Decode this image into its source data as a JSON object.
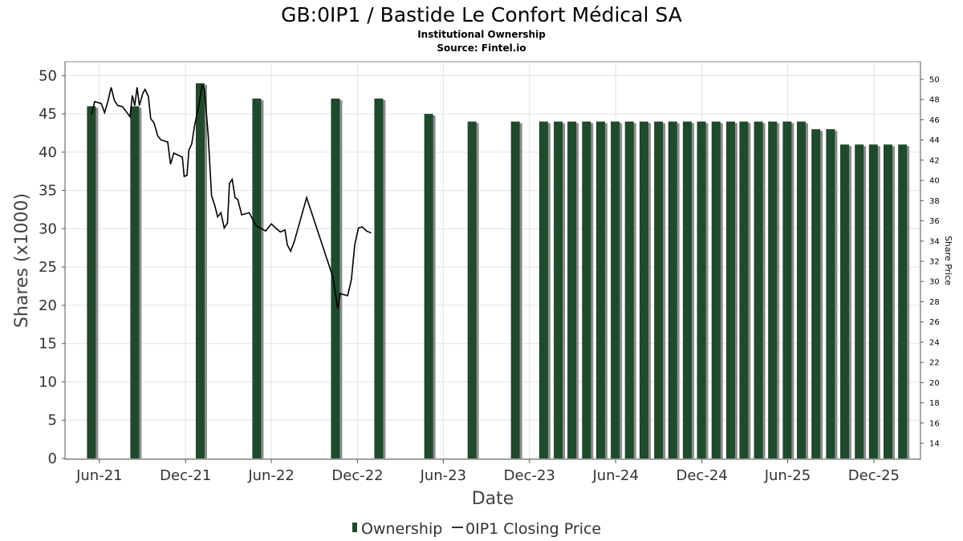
{
  "chart_data": {
    "type": "bar",
    "title": "GB:0IP1 / Bastide Le Confort Médical SA",
    "subtitle_lines": [
      "Institutional Ownership",
      "Source: Fintel.io"
    ],
    "xlabel": "Date",
    "ylabel": "Shares (x1000)",
    "y2label": "Share Price",
    "ylim": [
      0,
      51.5
    ],
    "y2lim": [
      12.5,
      51.5
    ],
    "yticks": [
      0,
      5,
      10,
      15,
      20,
      25,
      30,
      35,
      40,
      45,
      50
    ],
    "y2ticks": [
      14,
      16,
      18,
      20,
      22,
      24,
      26,
      28,
      30,
      32,
      34,
      36,
      38,
      40,
      42,
      44,
      46,
      48,
      50
    ],
    "xlim": [
      "2021-03-20",
      "2026-03-10"
    ],
    "xticks": [
      {
        "label": "Jun-21",
        "date": "2021-06-01"
      },
      {
        "label": "Dec-21",
        "date": "2021-12-01"
      },
      {
        "label": "Jun-22",
        "date": "2022-06-01"
      },
      {
        "label": "Dec-22",
        "date": "2022-12-01"
      },
      {
        "label": "Jun-23",
        "date": "2023-06-01"
      },
      {
        "label": "Dec-23",
        "date": "2023-12-01"
      },
      {
        "label": "Jun-24",
        "date": "2024-06-01"
      },
      {
        "label": "Dec-24",
        "date": "2024-12-01"
      },
      {
        "label": "Jun-25",
        "date": "2025-06-01"
      },
      {
        "label": "Dec-25",
        "date": "2025-12-01"
      }
    ],
    "grid": true,
    "legend_position": "bottom",
    "colors": {
      "bar": "#1f4a2c",
      "bar_shadow": "#8c8c8c",
      "line": "#000000"
    },
    "series": [
      {
        "name": "Ownership",
        "type": "bar",
        "points": [
          {
            "x": "2021-05-15",
            "y": 46
          },
          {
            "x": "2021-08-15",
            "y": 46
          },
          {
            "x": "2022-01-01",
            "y": 49
          },
          {
            "x": "2022-05-01",
            "y": 47
          },
          {
            "x": "2022-10-15",
            "y": 47
          },
          {
            "x": "2023-01-15",
            "y": 47
          },
          {
            "x": "2023-05-01",
            "y": 45
          },
          {
            "x": "2023-08-01",
            "y": 44
          },
          {
            "x": "2023-11-01",
            "y": 44
          },
          {
            "x": "2023-12-31",
            "y": 44
          },
          {
            "x": "2024-01-31",
            "y": 44
          },
          {
            "x": "2024-02-29",
            "y": 44
          },
          {
            "x": "2024-03-31",
            "y": 44
          },
          {
            "x": "2024-04-30",
            "y": 44
          },
          {
            "x": "2024-05-31",
            "y": 44
          },
          {
            "x": "2024-06-30",
            "y": 44
          },
          {
            "x": "2024-07-31",
            "y": 44
          },
          {
            "x": "2024-08-31",
            "y": 44
          },
          {
            "x": "2024-09-30",
            "y": 44
          },
          {
            "x": "2024-10-31",
            "y": 44
          },
          {
            "x": "2024-11-30",
            "y": 44
          },
          {
            "x": "2024-12-31",
            "y": 44
          },
          {
            "x": "2025-01-31",
            "y": 44
          },
          {
            "x": "2025-02-28",
            "y": 44
          },
          {
            "x": "2025-03-31",
            "y": 44
          },
          {
            "x": "2025-04-30",
            "y": 44
          },
          {
            "x": "2025-05-31",
            "y": 44
          },
          {
            "x": "2025-06-30",
            "y": 44
          },
          {
            "x": "2025-07-31",
            "y": 43
          },
          {
            "x": "2025-08-31",
            "y": 43
          },
          {
            "x": "2025-09-30",
            "y": 41
          },
          {
            "x": "2025-10-31",
            "y": 41
          },
          {
            "x": "2025-11-30",
            "y": 41
          },
          {
            "x": "2025-12-31",
            "y": 41
          },
          {
            "x": "2026-01-31",
            "y": 41
          }
        ]
      },
      {
        "name": "0IP1 Closing Price",
        "type": "line",
        "axis": "right",
        "points": [
          {
            "x": "2021-05-15",
            "y": 46.5
          },
          {
            "x": "2021-05-22",
            "y": 47.8
          },
          {
            "x": "2021-06-05",
            "y": 47.6
          },
          {
            "x": "2021-06-12",
            "y": 46.7
          },
          {
            "x": "2021-06-19",
            "y": 47.8
          },
          {
            "x": "2021-06-26",
            "y": 49.2
          },
          {
            "x": "2021-07-03",
            "y": 47.9
          },
          {
            "x": "2021-07-10",
            "y": 47.4
          },
          {
            "x": "2021-07-20",
            "y": 47.3
          },
          {
            "x": "2021-07-28",
            "y": 46.8
          },
          {
            "x": "2021-08-05",
            "y": 46.3
          },
          {
            "x": "2021-08-10",
            "y": 48.4
          },
          {
            "x": "2021-08-15",
            "y": 47.4
          },
          {
            "x": "2021-08-20",
            "y": 49.2
          },
          {
            "x": "2021-08-25",
            "y": 47.4
          },
          {
            "x": "2021-09-01",
            "y": 48.6
          },
          {
            "x": "2021-09-06",
            "y": 49.0
          },
          {
            "x": "2021-09-13",
            "y": 48.3
          },
          {
            "x": "2021-09-18",
            "y": 46.1
          },
          {
            "x": "2021-09-25",
            "y": 45.7
          },
          {
            "x": "2021-10-03",
            "y": 44.4
          },
          {
            "x": "2021-10-10",
            "y": 44.0
          },
          {
            "x": "2021-10-24",
            "y": 43.8
          },
          {
            "x": "2021-10-30",
            "y": 41.6
          },
          {
            "x": "2021-11-06",
            "y": 42.7
          },
          {
            "x": "2021-11-15",
            "y": 42.5
          },
          {
            "x": "2021-11-24",
            "y": 42.3
          },
          {
            "x": "2021-11-28",
            "y": 40.4
          },
          {
            "x": "2021-12-04",
            "y": 40.5
          },
          {
            "x": "2021-12-08",
            "y": 43.0
          },
          {
            "x": "2021-12-14",
            "y": 43.6
          },
          {
            "x": "2021-12-20",
            "y": 45.4
          },
          {
            "x": "2021-12-30",
            "y": 47.6
          },
          {
            "x": "2022-01-05",
            "y": 49.4
          },
          {
            "x": "2022-01-10",
            "y": 49.0
          },
          {
            "x": "2022-01-18",
            "y": 44.5
          },
          {
            "x": "2022-01-25",
            "y": 38.5
          },
          {
            "x": "2022-02-01",
            "y": 37.5
          },
          {
            "x": "2022-02-07",
            "y": 36.4
          },
          {
            "x": "2022-02-14",
            "y": 36.8
          },
          {
            "x": "2022-02-21",
            "y": 35.3
          },
          {
            "x": "2022-02-28",
            "y": 35.8
          },
          {
            "x": "2022-03-04",
            "y": 39.7
          },
          {
            "x": "2022-03-10",
            "y": 40.1
          },
          {
            "x": "2022-03-16",
            "y": 38.3
          },
          {
            "x": "2022-03-22",
            "y": 38.1
          },
          {
            "x": "2022-03-30",
            "y": 36.6
          },
          {
            "x": "2022-04-15",
            "y": 36.8
          },
          {
            "x": "2022-04-30",
            "y": 35.5
          },
          {
            "x": "2022-05-20",
            "y": 35.0
          },
          {
            "x": "2022-06-01",
            "y": 35.7
          },
          {
            "x": "2022-06-10",
            "y": 35.3
          },
          {
            "x": "2022-06-20",
            "y": 34.9
          },
          {
            "x": "2022-06-30",
            "y": 35.1
          },
          {
            "x": "2022-07-05",
            "y": 33.6
          },
          {
            "x": "2022-07-12",
            "y": 33.0
          },
          {
            "x": "2022-07-20",
            "y": 34.0
          },
          {
            "x": "2022-08-15",
            "y": 38.3
          },
          {
            "x": "2022-10-10",
            "y": 30.4
          },
          {
            "x": "2022-10-20",
            "y": 27.3
          },
          {
            "x": "2022-10-25",
            "y": 28.8
          },
          {
            "x": "2022-11-10",
            "y": 28.6
          },
          {
            "x": "2022-11-18",
            "y": 30.2
          },
          {
            "x": "2022-11-25",
            "y": 33.6
          },
          {
            "x": "2022-12-03",
            "y": 35.3
          },
          {
            "x": "2022-12-11",
            "y": 35.4
          },
          {
            "x": "2022-12-20",
            "y": 35.0
          },
          {
            "x": "2022-12-30",
            "y": 34.8
          }
        ]
      }
    ]
  }
}
